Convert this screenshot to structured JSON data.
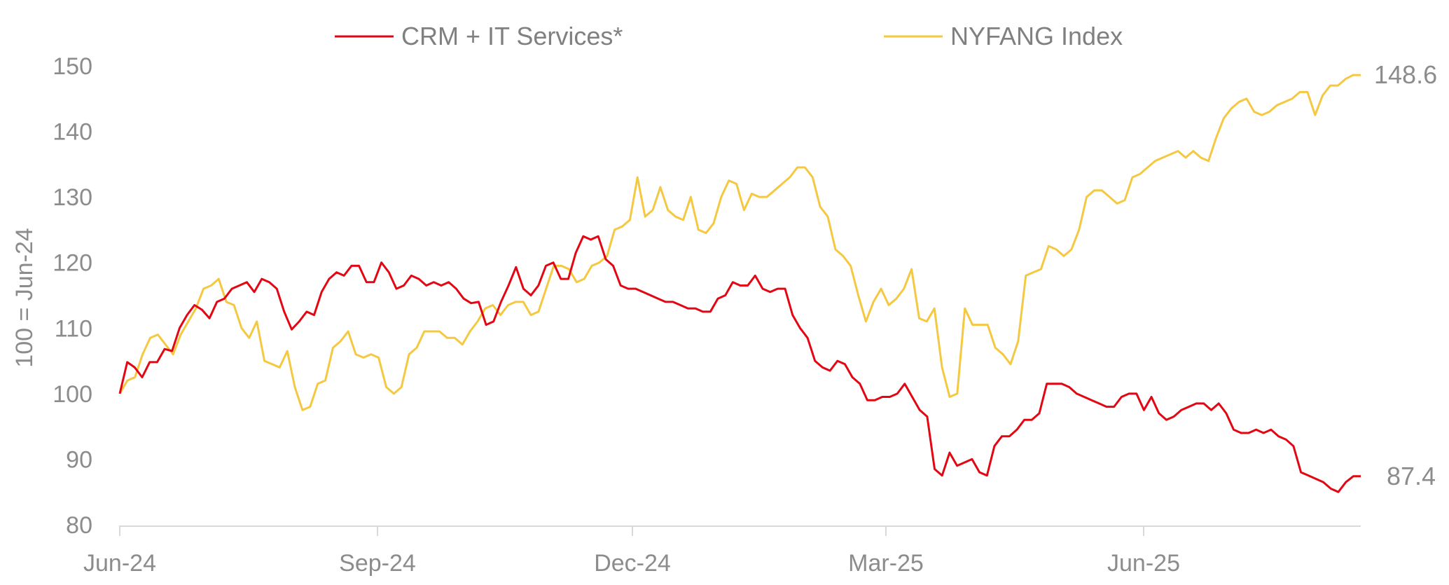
{
  "chart_data": {
    "type": "line",
    "title": "",
    "xlabel": "",
    "ylabel": "100 = Jun-24",
    "ylim": [
      80,
      150
    ],
    "y_ticks": [
      80,
      90,
      100,
      110,
      120,
      130,
      140,
      150
    ],
    "x_ticks": [
      "Jun-24",
      "Sep-24",
      "Dec-24",
      "Mar-25",
      "Jun-25"
    ],
    "grid": false,
    "legend_position": "top",
    "axis_color": "#d9d9d9",
    "series": [
      {
        "name": "CRM + IT Services*",
        "color": "#e30613",
        "end_label": "87.4",
        "values": [
          100,
          104.8,
          104,
          102.5,
          104.8,
          104.8,
          106.8,
          106.5,
          110,
          112,
          113.5,
          112.8,
          111.5,
          114,
          114.5,
          116,
          116.5,
          117,
          115.5,
          117.5,
          117,
          116,
          112.5,
          109.8,
          111,
          112.5,
          112,
          115.5,
          117.5,
          118.5,
          118,
          119.5,
          119.5,
          117,
          117,
          120,
          118.5,
          116,
          116.5,
          118,
          117.5,
          116.5,
          117,
          116.5,
          117,
          116,
          114.5,
          113.8,
          114,
          110.5,
          111,
          114,
          116.5,
          119.3,
          116,
          115,
          116.5,
          119.5,
          120,
          117.5,
          117.5,
          121.5,
          124,
          123.5,
          124,
          120.5,
          119.5,
          116.5,
          116,
          116,
          115.5,
          115,
          114.5,
          114,
          114,
          113.5,
          113,
          113,
          112.5,
          112.5,
          114.5,
          115,
          117,
          116.5,
          116.5,
          118,
          116,
          115.5,
          116,
          116,
          112,
          110,
          108.5,
          105,
          104,
          103.5,
          105,
          104.5,
          102.5,
          101.5,
          99,
          99,
          99.5,
          99.5,
          100,
          101.5,
          99.5,
          97.5,
          96.5,
          88.5,
          87.5,
          91,
          89,
          89.5,
          90,
          88,
          87.5,
          92,
          93.5,
          93.5,
          94.5,
          96,
          96,
          97,
          101.5,
          101.5,
          101.5,
          101,
          100,
          99.5,
          99,
          98.5,
          98,
          98,
          99.5,
          100,
          100,
          97.5,
          99.5,
          97,
          96,
          96.5,
          97.5,
          98,
          98.5,
          98.5,
          97.5,
          98.5,
          97,
          94.5,
          94,
          94,
          94.5,
          94,
          94.5,
          93.5,
          93,
          92,
          88,
          87.5,
          87,
          86.5,
          85.5,
          85,
          86.5,
          87.4,
          87.4
        ]
      },
      {
        "name": "NYFANG Index",
        "color": "#f5c842",
        "end_label": "148.6",
        "values": [
          100,
          102,
          102.5,
          106,
          108.5,
          109,
          107.5,
          106,
          109,
          111,
          113,
          116,
          116.5,
          117.5,
          114,
          113.5,
          110,
          108.5,
          111,
          105,
          104.5,
          104,
          106.5,
          101,
          97.5,
          98,
          101.5,
          102,
          107,
          108,
          109.5,
          106,
          105.5,
          106,
          105.5,
          101,
          100,
          101,
          106,
          107,
          109.5,
          109.5,
          109.5,
          108.5,
          108.5,
          107.5,
          109.5,
          111,
          113,
          113.5,
          112,
          113.5,
          114,
          114,
          112,
          112.5,
          116,
          119.5,
          119.5,
          119,
          117,
          117.5,
          119.5,
          120,
          121,
          125,
          125.5,
          126.5,
          133,
          127,
          128,
          131.5,
          128,
          127,
          126.5,
          130,
          125,
          124.5,
          126,
          130,
          132.5,
          132,
          128,
          130.5,
          130,
          130,
          131,
          132,
          133,
          134.5,
          134.5,
          133,
          128.5,
          127,
          122,
          121,
          119.5,
          115,
          111,
          114,
          116,
          113.5,
          114.5,
          116,
          119,
          111.5,
          111,
          113,
          104,
          99.5,
          100,
          113,
          110.5,
          110.5,
          110.5,
          107,
          106,
          104.5,
          108,
          118,
          118.5,
          119,
          122.5,
          122,
          121,
          122,
          125,
          130,
          131,
          131,
          130,
          129,
          129.5,
          133,
          133.5,
          134.5,
          135.5,
          136,
          136.5,
          137,
          136,
          137,
          136,
          135.5,
          139,
          142,
          143.5,
          144.5,
          145,
          143,
          142.5,
          143,
          144,
          144.5,
          145,
          146,
          146,
          142.5,
          145.5,
          147,
          147,
          148,
          148.6,
          148.6
        ]
      }
    ]
  }
}
